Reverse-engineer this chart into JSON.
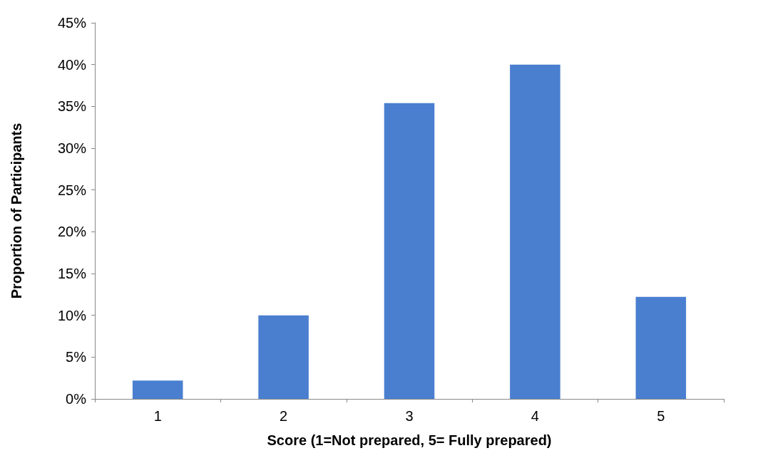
{
  "chart_data": {
    "type": "bar",
    "xlabel": "Score (1=Not prepared, 5= Fully prepared)",
    "ylabel": "Proportion of Participants",
    "categories": [
      "1",
      "2",
      "3",
      "4",
      "5"
    ],
    "values": [
      2.2,
      10,
      35.4,
      40,
      12.2
    ],
    "color": "#4a7fd0",
    "ylim": [
      0,
      45
    ],
    "yticks": [
      {
        "value": 0,
        "label": "0%"
      },
      {
        "value": 5,
        "label": "5%"
      },
      {
        "value": 10,
        "label": "10%"
      },
      {
        "value": 15,
        "label": "15%"
      },
      {
        "value": 20,
        "label": "20%"
      },
      {
        "value": 25,
        "label": "25%"
      },
      {
        "value": 30,
        "label": "30%"
      },
      {
        "value": 35,
        "label": "35%"
      },
      {
        "value": 40,
        "label": "40%"
      },
      {
        "value": 45,
        "label": "45%"
      }
    ],
    "grid": false
  }
}
